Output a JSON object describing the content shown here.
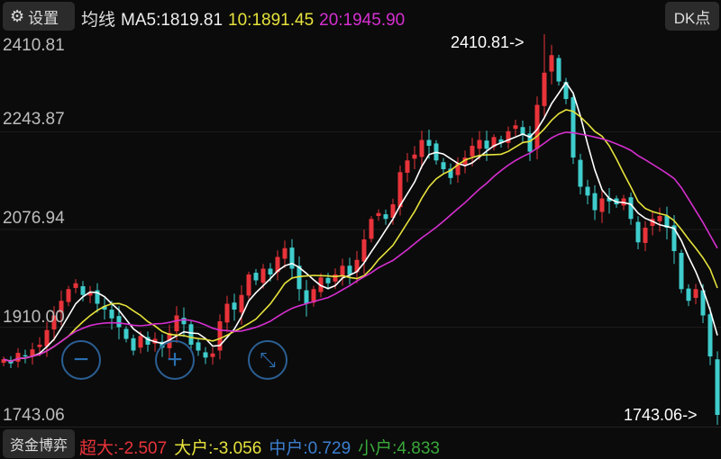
{
  "toolbar": {
    "settings_label": "设置",
    "settings_icon": "gear-icon",
    "ma_label": "均线",
    "ma5": "MA5:1819.81",
    "ma10": "10:1891.45",
    "ma20": "20:1945.90",
    "dk_label": "DK点"
  },
  "colors": {
    "up": "#e8333a",
    "down": "#3fcccc",
    "ma5": "#ffffff",
    "ma10": "#e6e23c",
    "ma20": "#d62fd0",
    "buttons": "#2b5f93"
  },
  "controls": {
    "zoom_out_icon": "minus-circle-icon",
    "zoom_in_icon": "plus-circle-icon",
    "fullscreen_icon": "expand-icon"
  },
  "chart_data": {
    "type": "candlestick",
    "y_tick_labels": [
      "2410.81",
      "2243.87",
      "2076.94",
      "1910.00",
      "1743.06"
    ],
    "ylim": [
      1743.06,
      2410.81
    ],
    "high_marker": {
      "label": "2410.81->",
      "value": 2410.81,
      "index": 75
    },
    "low_marker": {
      "label": "1743.06->",
      "value": 1743.06,
      "index": 99
    },
    "close": [
      1855,
      1848,
      1866,
      1860,
      1872,
      1880,
      1905,
      1930,
      1955,
      1975,
      1985,
      1965,
      1970,
      1950,
      1940,
      1925,
      1910,
      1890,
      1870,
      1895,
      1880,
      1890,
      1875,
      1900,
      1930,
      1915,
      1880,
      1870,
      1858,
      1865,
      1920,
      1950,
      1940,
      1965,
      2000,
      1990,
      2010,
      2000,
      2030,
      2045,
      2010,
      1975,
      1950,
      1975,
      1995,
      1985,
      2000,
      2015,
      2000,
      2025,
      2060,
      2095,
      2105,
      2095,
      2120,
      2175,
      2195,
      2205,
      2230,
      2220,
      2195,
      2180,
      2165,
      2190,
      2200,
      2220,
      2230,
      2215,
      2235,
      2225,
      2245,
      2255,
      2240,
      2210,
      2290,
      2345,
      2375,
      2330,
      2300,
      2200,
      2150,
      2135,
      2110,
      2130,
      2125,
      2120,
      2130,
      2095,
      2055,
      2080,
      2095,
      2100,
      2080,
      2040,
      1975,
      1955,
      1975,
      1930,
      1860,
      1760
    ],
    "series": [
      {
        "name": "MA5",
        "period": 5
      },
      {
        "name": "10",
        "period": 10
      },
      {
        "name": "20",
        "period": 20
      }
    ]
  },
  "fund_flow": {
    "button": "资金博弈",
    "super_large": "超大:-2.507",
    "large": "大户:-3.056",
    "medium": "中户:0.729",
    "small": "小户:4.833"
  }
}
